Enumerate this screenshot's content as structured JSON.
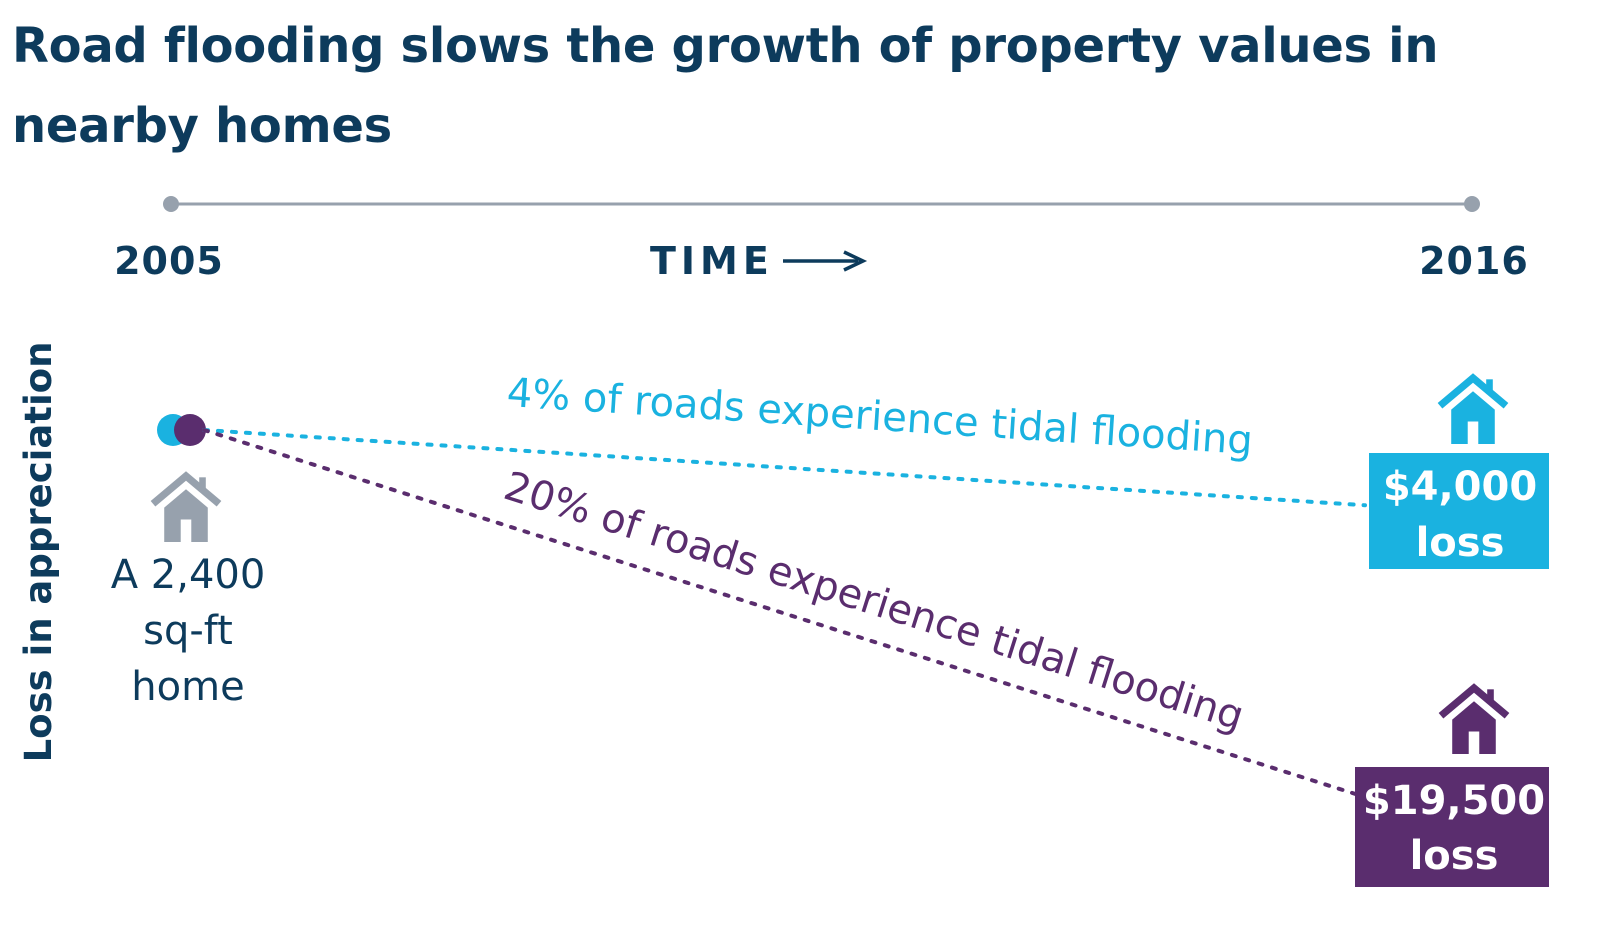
{
  "title": "Road flooding slows the growth of property values in nearby homes",
  "colors": {
    "navy": "#0d3b5c",
    "gray": "#97a1ad",
    "cyan": "#1ab2e0",
    "purple": "#5a2d6e"
  },
  "icons": [
    "house-icon"
  ],
  "chart_data": {
    "type": "line",
    "x_label": "TIME",
    "y_label": "Loss in appreciation",
    "x": [
      "2005",
      "2016"
    ],
    "start_label": "A 2,400 sq-ft home",
    "start_label_lines": [
      "A 2,400",
      "sq-ft",
      "home"
    ],
    "series": [
      {
        "name": "4% of roads experience tidal flooding",
        "color": "#1ab2e0",
        "values": [
          0,
          4000
        ],
        "end_label_lines": [
          "$4,000",
          "loss"
        ]
      },
      {
        "name": "20% of roads experience tidal flooding",
        "color": "#5a2d6e",
        "values": [
          0,
          19500
        ],
        "end_label_lines": [
          "$19,500",
          "loss"
        ]
      }
    ]
  }
}
